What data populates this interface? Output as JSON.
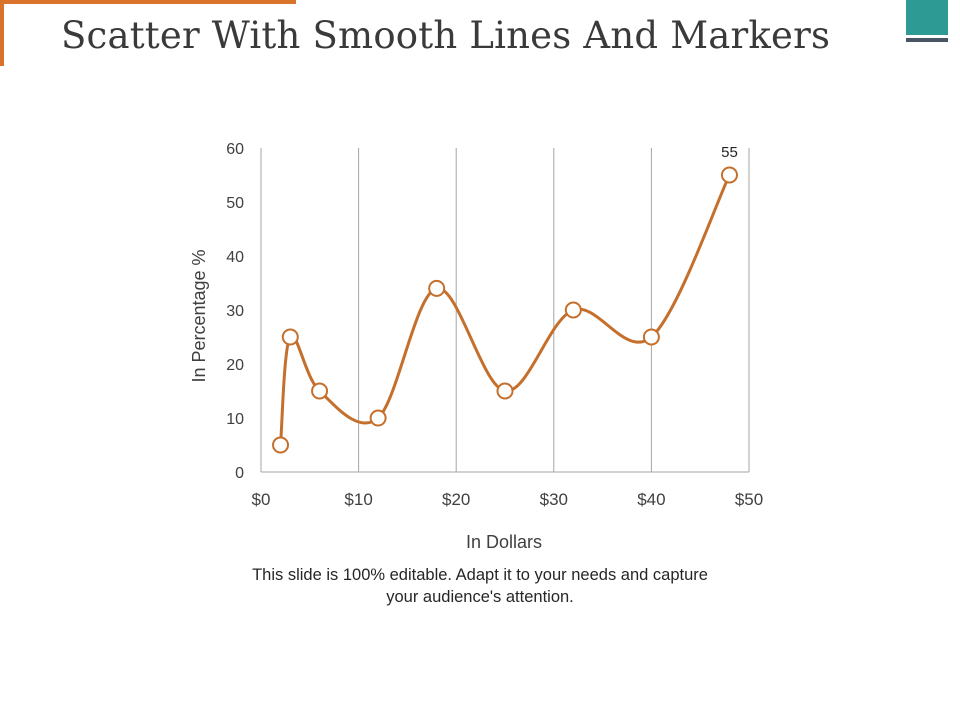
{
  "slide": {
    "title": "Scatter With Smooth Lines And Markers",
    "caption_line1": "This slide is 100% editable. Adapt it to your needs and capture",
    "caption_line2": "your audience's attention.",
    "colors": {
      "accent": "#d9732b",
      "corner": "#2e9a94",
      "corner_bar": "#4a5563",
      "series": "#c56f2c",
      "grid": "#a6a6a6",
      "text": "#404040"
    }
  },
  "chart_data": {
    "type": "scatter",
    "xlabel": "In Dollars",
    "ylabel": "In Percentage %",
    "xlim": [
      0,
      50
    ],
    "ylim": [
      0,
      60
    ],
    "x_ticks": [
      0,
      10,
      20,
      30,
      40,
      50
    ],
    "x_tick_labels": [
      "$0",
      "$10",
      "$20",
      "$30",
      "$40",
      "$50"
    ],
    "y_ticks": [
      0,
      10,
      20,
      30,
      40,
      50,
      60
    ],
    "y_tick_labels": [
      "0",
      "10",
      "20",
      "30",
      "40",
      "50",
      "60"
    ],
    "grid": "vertical",
    "smooth": true,
    "markers": true,
    "series": [
      {
        "x": [
          2,
          3,
          6,
          12,
          18,
          25,
          32,
          40,
          48
        ],
        "y": [
          5,
          25,
          15,
          10,
          34,
          15,
          30,
          25,
          55
        ],
        "data_labels": [
          null,
          null,
          null,
          null,
          null,
          null,
          null,
          null,
          "55"
        ]
      }
    ]
  }
}
